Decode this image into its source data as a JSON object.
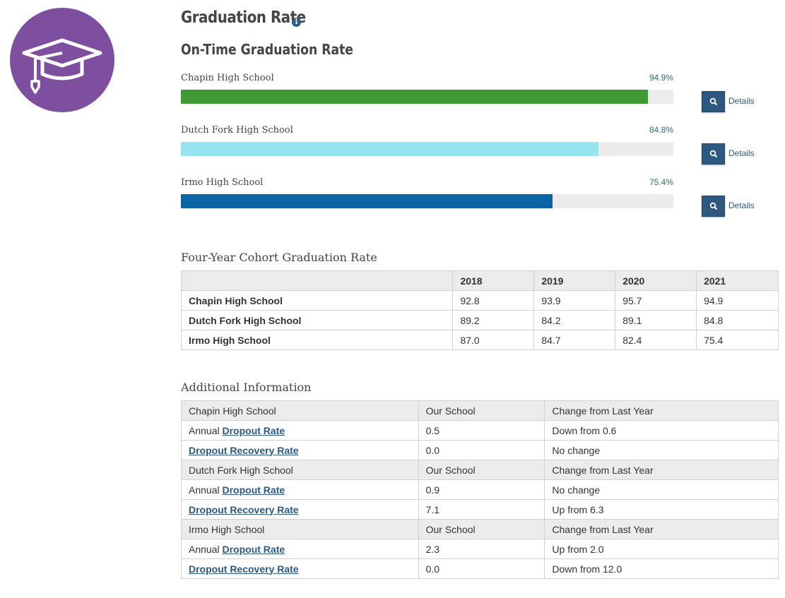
{
  "header": {
    "title": "Graduation Rate",
    "info_icon": "i",
    "subtitle": "On-Time Graduation Rate"
  },
  "bars": {
    "details_label": "Details",
    "items": [
      {
        "school": "Chapin High School",
        "percent": "94.9%",
        "value": 94.9,
        "color": "#3f9a36"
      },
      {
        "school": "Dutch Fork High School",
        "percent": "84.8%",
        "value": 84.8,
        "color": "#97e3ef"
      },
      {
        "school": "Irmo High School",
        "percent": "75.4%",
        "value": 75.4,
        "color": "#0a65a5"
      }
    ]
  },
  "cohort": {
    "title": "Four-Year Cohort Graduation Rate",
    "years": [
      "2018",
      "2019",
      "2020",
      "2021"
    ],
    "rows": [
      {
        "school": "Chapin High School",
        "values": [
          "92.8",
          "93.9",
          "95.7",
          "94.9"
        ]
      },
      {
        "school": "Dutch Fork High School",
        "values": [
          "89.2",
          "84.2",
          "89.1",
          "84.8"
        ]
      },
      {
        "school": "Irmo High School",
        "values": [
          "87.0",
          "84.7",
          "82.4",
          "75.4"
        ]
      }
    ]
  },
  "additional": {
    "title": "Additional Information",
    "col_our": "Our School",
    "col_change": "Change from Last Year",
    "annual_prefix": "Annual",
    "dropout_rate_link": "Dropout Rate",
    "recovery_link": "Dropout Recovery Rate",
    "groups": [
      {
        "school": "Chapin High School",
        "dropout": "0.5",
        "dropout_change": "Down from 0.6",
        "recovery": "0.0",
        "recovery_change": "No change"
      },
      {
        "school": "Dutch Fork High School",
        "dropout": "0.9",
        "dropout_change": "No change",
        "recovery": "7.1",
        "recovery_change": "Up from 6.3"
      },
      {
        "school": "Irmo High School",
        "dropout": "2.3",
        "dropout_change": "Up from 2.0",
        "recovery": "0.0",
        "recovery_change": "Down from 12.0"
      }
    ]
  }
}
